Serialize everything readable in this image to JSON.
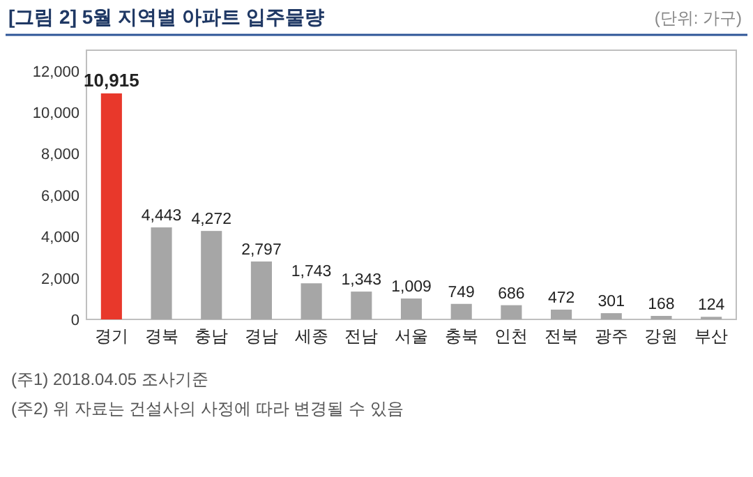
{
  "chart_data": {
    "type": "bar",
    "title": "[그림 2] 5월 지역별 아파트 입주물량",
    "annotations": [
      "(단위: 가구)",
      "(주1) 2018.04.05 조사기준",
      "(주2) 위 자료는 건설사의 사정에 따라 변경될 수 있음"
    ],
    "categories": [
      "경기",
      "경북",
      "충남",
      "경남",
      "세종",
      "전남",
      "서울",
      "충북",
      "인천",
      "전북",
      "광주",
      "강원",
      "부산"
    ],
    "values": [
      10915,
      4443,
      4272,
      2797,
      1743,
      1343,
      1009,
      749,
      686,
      472,
      301,
      168,
      124
    ],
    "colors": [
      "#e8382b",
      "#a6a6a6",
      "#a6a6a6",
      "#a6a6a6",
      "#a6a6a6",
      "#a6a6a6",
      "#a6a6a6",
      "#a6a6a6",
      "#a6a6a6",
      "#a6a6a6",
      "#a6a6a6",
      "#a6a6a6",
      "#a6a6a6"
    ],
    "value_labels": [
      "10,915",
      "4,443",
      "4,272",
      "2,797",
      "1,743",
      "1,343",
      "1,009",
      "749",
      "686",
      "472",
      "301",
      "168",
      "124"
    ],
    "ylim": [
      0,
      13000
    ],
    "yticks": [
      0,
      {
        "value": 2000,
        "label": "2,000"
      },
      {
        "value": 4000,
        "label": "4,000"
      },
      {
        "value": 6000,
        "label": "6,000"
      },
      {
        "value": 8000,
        "label": "8,000"
      },
      {
        "value": 10000,
        "label": "10,000"
      },
      {
        "value": 12000,
        "label": "12,000"
      }
    ],
    "grid": false
  }
}
